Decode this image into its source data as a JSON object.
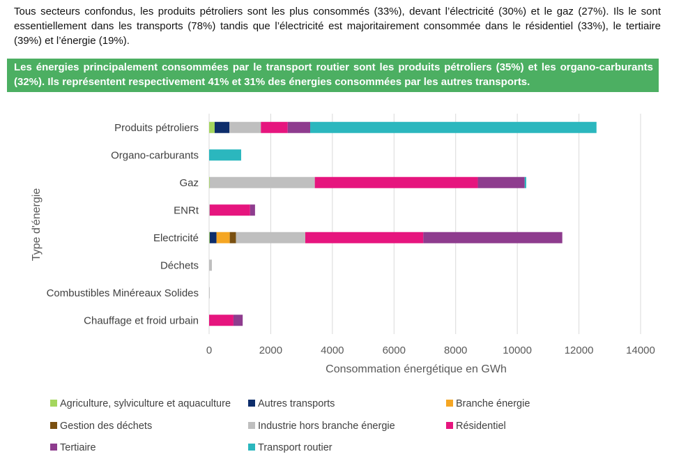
{
  "intro_text": "Tous secteurs confondus, les produits pétroliers sont les plus consommés (33%), devant l’électricité (30%) et le gaz (27%). Ils le sont essentiellement dans les transports (78%) tandis que l’électricité est majoritairement consommée dans le résidentiel (33%), le tertiaire (39%) et l’énergie (19%).",
  "highlight_text": "Les énergies principalement consommées par le transport routier sont les produits pétroliers (35%) et les organo-carburants (32%). Ils représentent respectivement 41% et 31% des énergies consommées par les autres transports.",
  "colors": {
    "banner": "#4caf62",
    "grid": "#d9d9d9",
    "axis_text": "#595959"
  },
  "chart_data": {
    "type": "bar",
    "orientation": "horizontal",
    "stacked": true,
    "xlabel": "Consommation énergétique en GWh",
    "ylabel": "Type d'énergie",
    "xlim": [
      0,
      14000
    ],
    "xticks": [
      0,
      2000,
      4000,
      6000,
      8000,
      10000,
      12000,
      14000
    ],
    "grid": true,
    "legend_position": "bottom",
    "categories": [
      "Produits pétroliers",
      "Organo-carburants",
      "Gaz",
      "ENRt",
      "Electricité",
      "Déchets",
      "Combustibles Minéreaux Solides",
      "Chauffage et froid urbain"
    ],
    "series": [
      {
        "name": "Agriculture, sylviculture et aquaculture",
        "color": "#a4d65e",
        "values": [
          180,
          0,
          20,
          0,
          20,
          0,
          0,
          0
        ]
      },
      {
        "name": "Autres transports",
        "color": "#0d2d6b",
        "values": [
          480,
          0,
          0,
          0,
          220,
          0,
          0,
          0
        ]
      },
      {
        "name": "Branche énergie",
        "color": "#f5a623",
        "values": [
          0,
          0,
          0,
          0,
          430,
          0,
          0,
          0
        ]
      },
      {
        "name": "Gestion des déchets",
        "color": "#7a5010",
        "values": [
          0,
          0,
          0,
          0,
          200,
          0,
          0,
          0
        ]
      },
      {
        "name": "Industrie hors branche énergie",
        "color": "#bfbfbf",
        "values": [
          1020,
          0,
          3410,
          20,
          2250,
          90,
          20,
          0
        ]
      },
      {
        "name": "Résidentiel",
        "color": "#e6157e",
        "values": [
          870,
          0,
          5290,
          1310,
          3830,
          0,
          0,
          790
        ]
      },
      {
        "name": "Tertiaire",
        "color": "#8e3c8e",
        "values": [
          730,
          0,
          1520,
          160,
          4510,
          0,
          0,
          300
        ]
      },
      {
        "name": "Transport routier",
        "color": "#2bb7be",
        "values": [
          9290,
          1040,
          50,
          0,
          0,
          0,
          0,
          0
        ]
      }
    ]
  }
}
